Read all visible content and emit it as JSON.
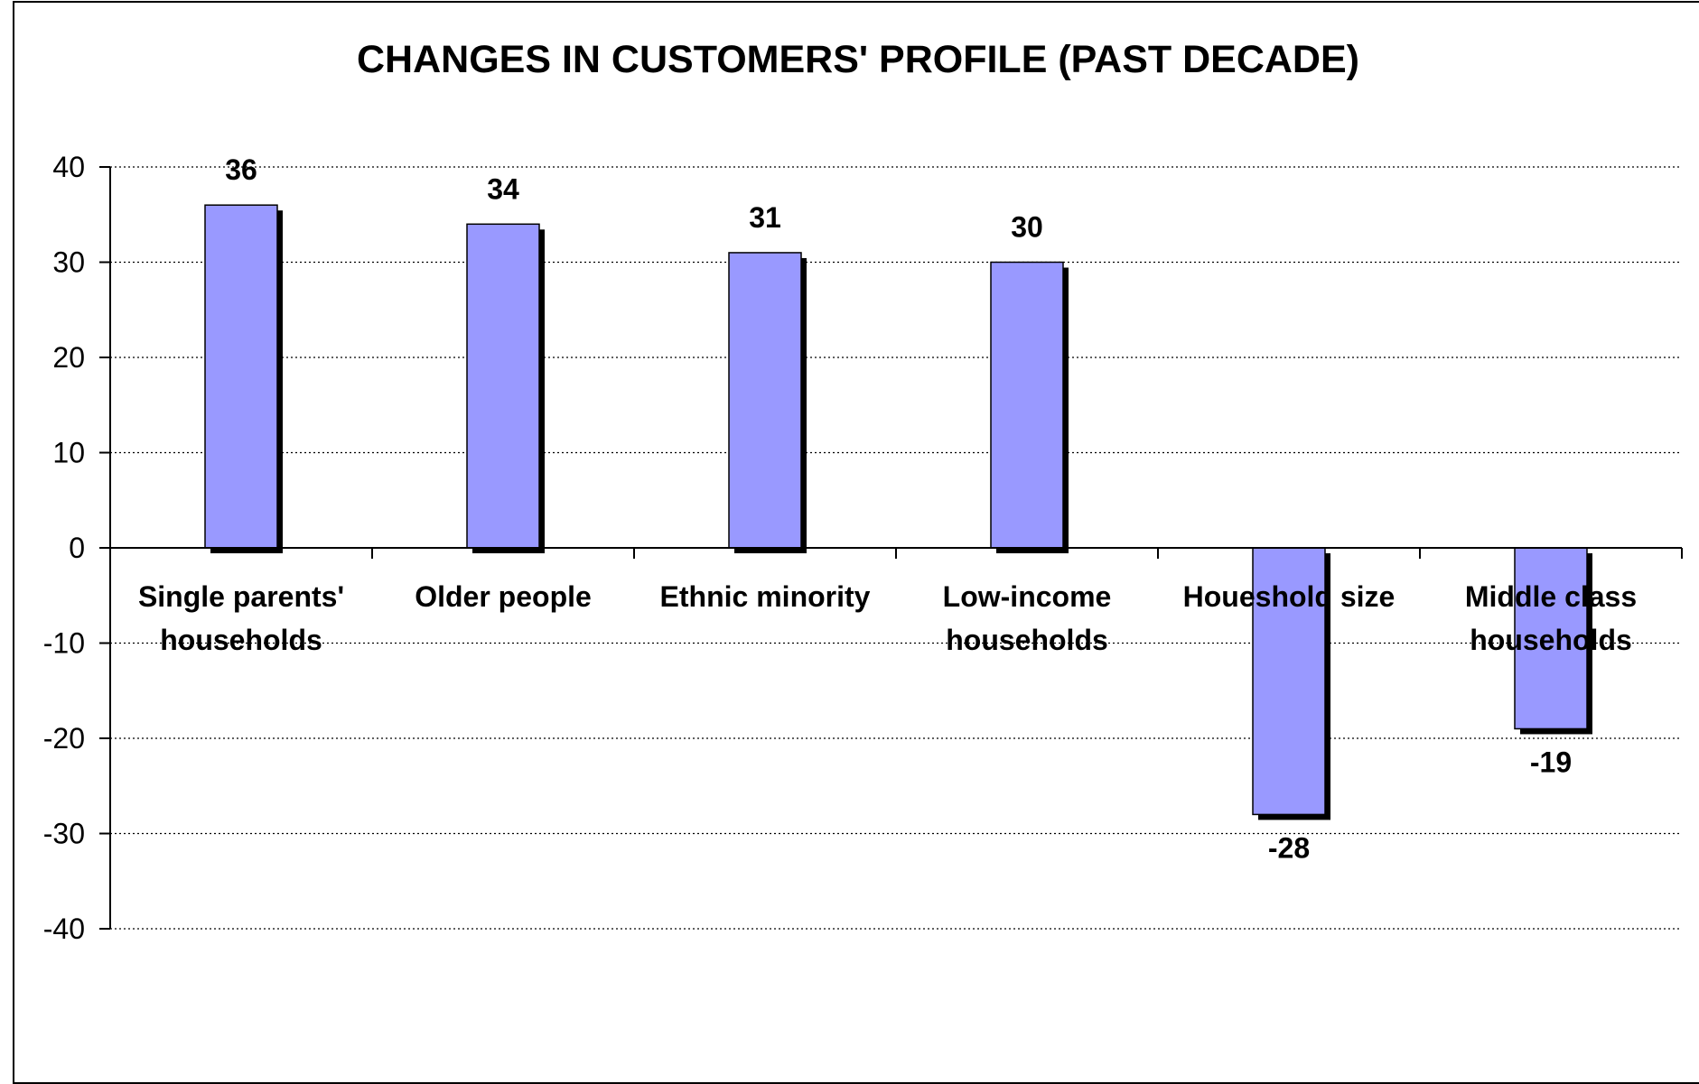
{
  "chart_data": {
    "type": "bar",
    "title": "CHANGES IN CUSTOMERS' PROFILE (PAST DECADE)",
    "xlabel": "",
    "ylabel": "",
    "categories": [
      [
        "Single parents'",
        "households"
      ],
      [
        "Older people"
      ],
      [
        "Ethnic minority"
      ],
      [
        "Low-income",
        "households"
      ],
      [
        "Houeshold size"
      ],
      [
        "Middle class",
        "households"
      ]
    ],
    "values": [
      36,
      34,
      31,
      30,
      -28,
      -19
    ],
    "ylim": [
      -40,
      40
    ],
    "yticks": [
      40,
      30,
      20,
      10,
      0,
      -10,
      -20,
      -30,
      -40
    ],
    "grid": true,
    "grid_style": "dotted",
    "data_labels": true,
    "legend": "none",
    "colors": {
      "bar_fill": "#9999ff",
      "bar_stroke": "#000000",
      "bar_shadow": "#000000",
      "grid": "#000000",
      "axis": "#000000",
      "text": "#000000"
    }
  }
}
